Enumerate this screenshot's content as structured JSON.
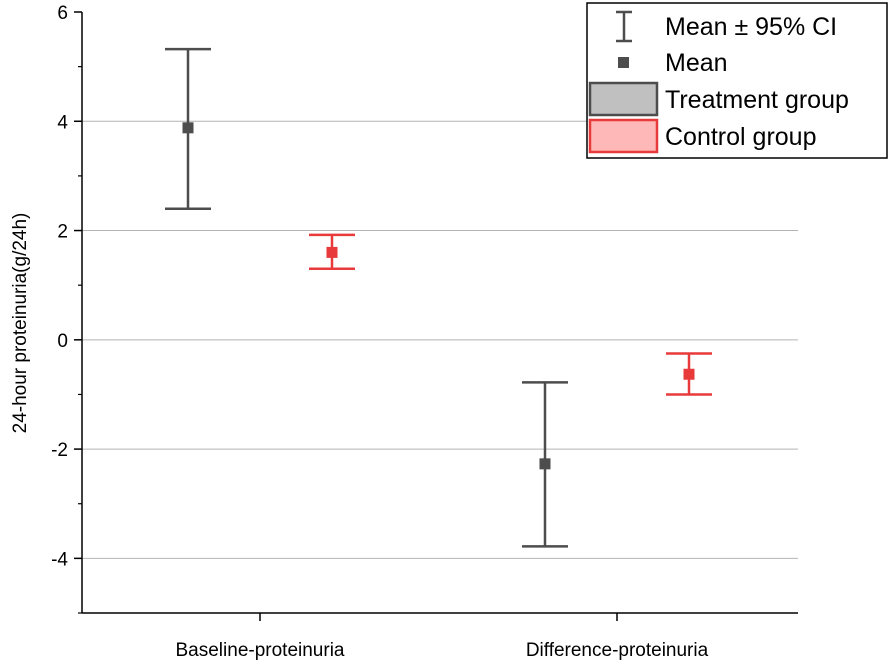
{
  "chart_data": {
    "type": "scatter",
    "categories": [
      "Baseline-proteinuria",
      "Difference-proteinuria"
    ],
    "ylabel": "24-hour proteinuria(g/24h)",
    "xlabel": "",
    "ylim": [
      -5,
      6
    ],
    "yticks": [
      -4,
      -2,
      0,
      2,
      4,
      6
    ],
    "grid": true,
    "legend_position": "top-right",
    "legend": {
      "ci_label": "Mean ± 95% CI",
      "mean_label": "Mean",
      "treatment_label": "Treatment group",
      "control_label": "Control group"
    },
    "series": [
      {
        "name": "Treatment group",
        "color": "#4d4d4d",
        "fill": "#c0c0c0",
        "means": [
          3.88,
          -2.27
        ],
        "ci_lower": [
          2.4,
          -3.78
        ],
        "ci_upper": [
          5.32,
          -0.78
        ]
      },
      {
        "name": "Control group",
        "color": "#e83a3a",
        "fill": "#ffb8b8",
        "means": [
          1.6,
          -0.63
        ],
        "ci_lower": [
          1.3,
          -1.0
        ],
        "ci_upper": [
          1.92,
          -0.25
        ]
      }
    ]
  }
}
